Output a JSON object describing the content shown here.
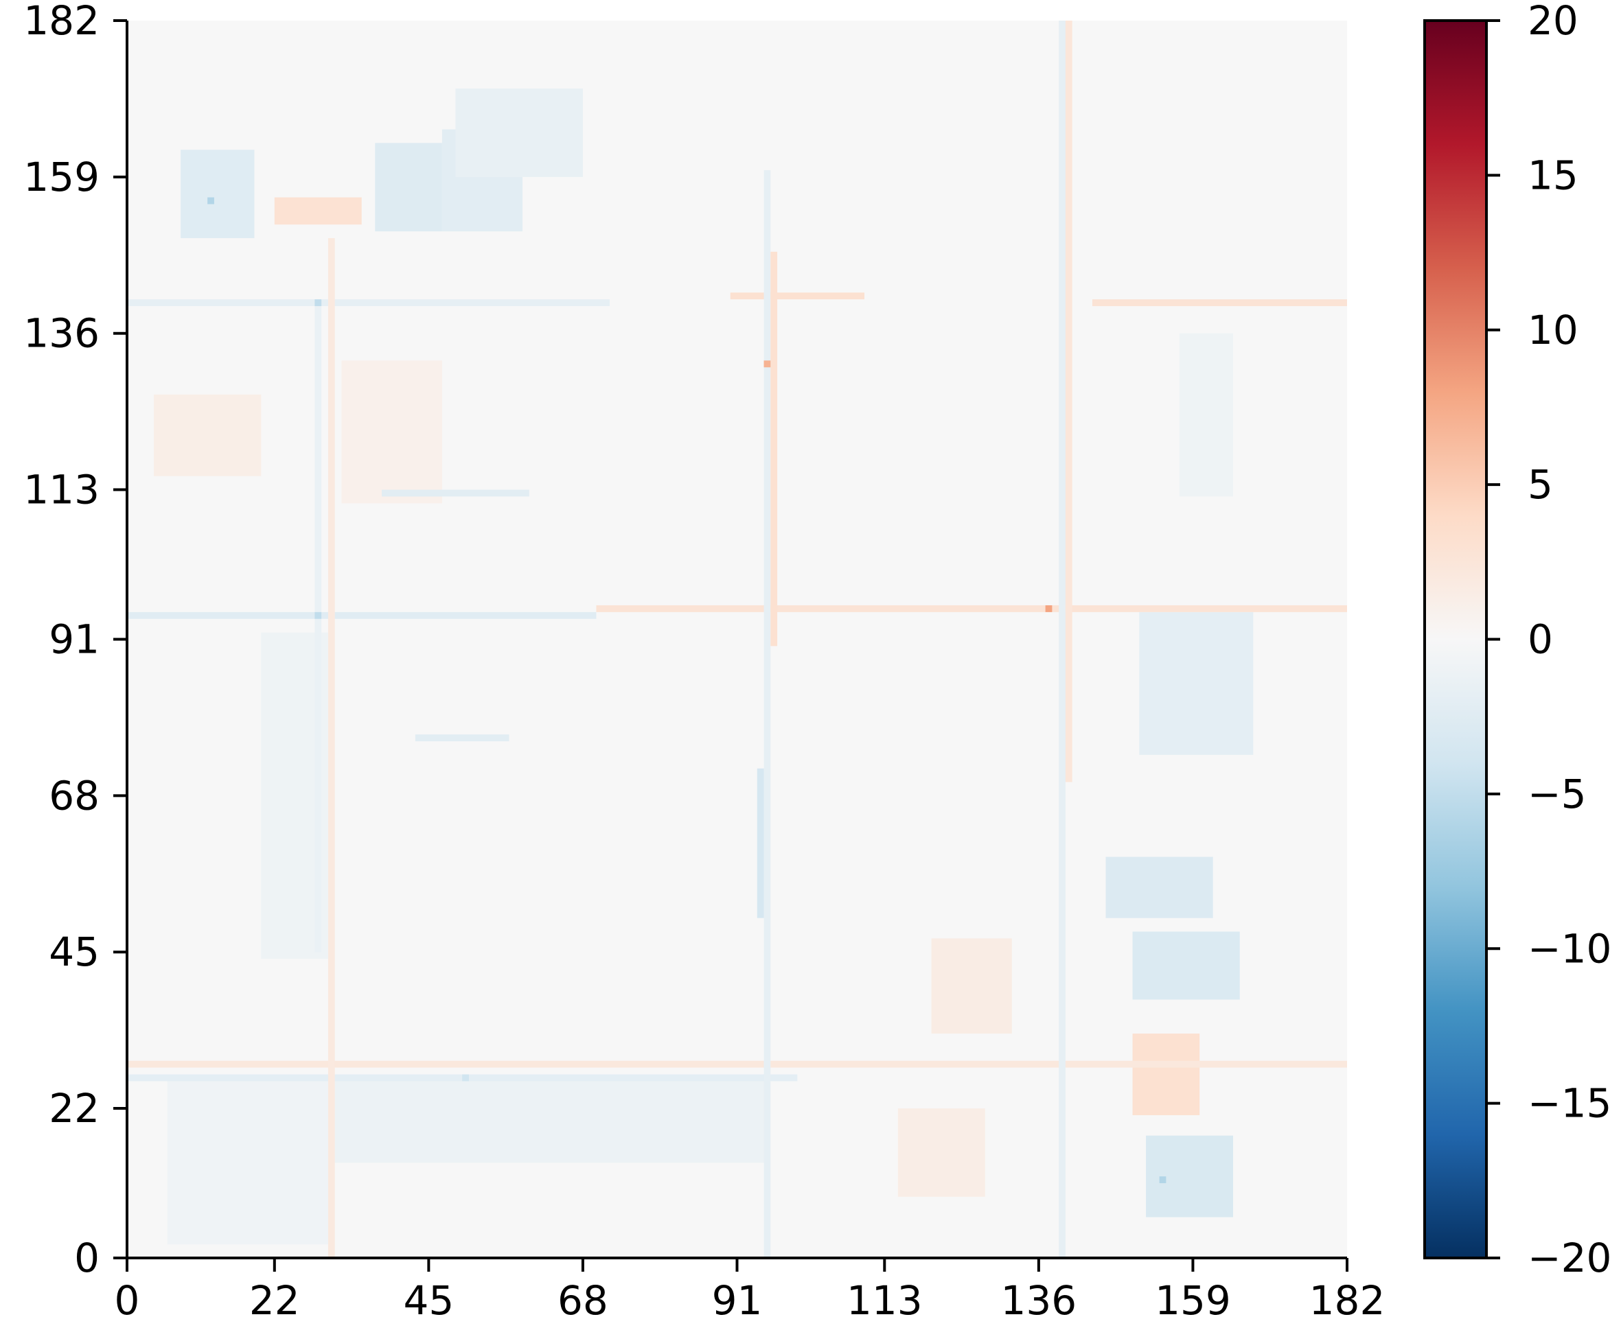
{
  "chart_data": {
    "type": "heatmap",
    "title": "",
    "xlabel": "",
    "ylabel": "",
    "grid": false,
    "n_rows": 182,
    "n_cols": 182,
    "xlim": [
      0,
      182
    ],
    "ylim": [
      0,
      182
    ],
    "x_ticks": [
      0,
      22,
      45,
      68,
      91,
      113,
      136,
      159,
      182
    ],
    "y_ticks": [
      0,
      22,
      45,
      68,
      91,
      113,
      136,
      159,
      182
    ],
    "x_tick_labels": [
      "0",
      "22",
      "45",
      "68",
      "91",
      "113",
      "136",
      "159",
      "182"
    ],
    "y_tick_labels": [
      "0",
      "22",
      "45",
      "68",
      "91",
      "113",
      "136",
      "159",
      "182"
    ],
    "background_value": 0,
    "colorbar": {
      "colormap": "RdBu_r",
      "vmin": -20,
      "vmax": 20,
      "ticks": [
        20,
        15,
        10,
        5,
        0,
        -5,
        -10,
        -15,
        -20
      ],
      "tick_labels": [
        "20",
        "15",
        "10",
        "5",
        "0",
        "−5",
        "−10",
        "−15",
        "−20"
      ],
      "colors": [
        "#053061",
        "#2166ac",
        "#4393c3",
        "#92c5de",
        "#d1e5f0",
        "#f7f7f7",
        "#fddbc7",
        "#f4a582",
        "#d6604d",
        "#b2182b",
        "#67001f"
      ]
    },
    "patterns": [
      {
        "kind": "block",
        "x": [
          8,
          19
        ],
        "y": [
          150,
          163
        ],
        "value": -2.5
      },
      {
        "kind": "block",
        "x": [
          37,
          47
        ],
        "y": [
          151,
          164
        ],
        "value": -2.6
      },
      {
        "kind": "block",
        "x": [
          47,
          59
        ],
        "y": [
          151,
          166
        ],
        "value": -2.2
      },
      {
        "kind": "block",
        "x": [
          49,
          68
        ],
        "y": [
          159,
          172
        ],
        "value": -1.6
      },
      {
        "kind": "block",
        "x": [
          22,
          35
        ],
        "y": [
          152,
          156
        ],
        "value": 3.0
      },
      {
        "kind": "block",
        "x": [
          4,
          20
        ],
        "y": [
          115,
          127
        ],
        "value": 1.3
      },
      {
        "kind": "block",
        "x": [
          32,
          47
        ],
        "y": [
          111,
          132
        ],
        "value": 1.0
      },
      {
        "kind": "block",
        "x": [
          152,
          165
        ],
        "y": [
          6,
          18
        ],
        "value": -3.2
      },
      {
        "kind": "block",
        "x": [
          150,
          166
        ],
        "y": [
          38,
          48
        ],
        "value": -3.0
      },
      {
        "kind": "block",
        "x": [
          146,
          162
        ],
        "y": [
          50,
          59
        ],
        "value": -2.8
      },
      {
        "kind": "block",
        "x": [
          151,
          168
        ],
        "y": [
          74,
          95
        ],
        "value": -2.0
      },
      {
        "kind": "block",
        "x": [
          150,
          160
        ],
        "y": [
          21,
          33
        ],
        "value": 3.2
      },
      {
        "kind": "block",
        "x": [
          115,
          128
        ],
        "y": [
          9,
          22
        ],
        "value": 1.4
      },
      {
        "kind": "block",
        "x": [
          120,
          132
        ],
        "y": [
          33,
          47
        ],
        "value": 1.6
      },
      {
        "kind": "block",
        "x": [
          157,
          165
        ],
        "y": [
          112,
          136
        ],
        "value": -1.0
      },
      {
        "kind": "block",
        "x": [
          6,
          30
        ],
        "y": [
          2,
          27
        ],
        "value": -0.8
      },
      {
        "kind": "block",
        "x": [
          30,
          95
        ],
        "y": [
          14,
          27
        ],
        "value": -1.2
      },
      {
        "kind": "block",
        "x": [
          20,
          30
        ],
        "y": [
          44,
          92
        ],
        "value": -1.0
      },
      {
        "kind": "line",
        "orient": "h",
        "pos": 94,
        "from": 0,
        "to": 70,
        "value": -2.4
      },
      {
        "kind": "line",
        "orient": "h",
        "pos": 95,
        "from": 70,
        "to": 182,
        "value": 2.8
      },
      {
        "kind": "line",
        "orient": "h",
        "pos": 28,
        "from": 0,
        "to": 182,
        "value": 2.2
      },
      {
        "kind": "line",
        "orient": "h",
        "pos": 26,
        "from": 0,
        "to": 100,
        "value": -2.0
      },
      {
        "kind": "line",
        "orient": "h",
        "pos": 140,
        "from": 0,
        "to": 72,
        "value": -1.8
      },
      {
        "kind": "line",
        "orient": "h",
        "pos": 141,
        "from": 90,
        "to": 110,
        "value": 3.2
      },
      {
        "kind": "line",
        "orient": "h",
        "pos": 140,
        "from": 144,
        "to": 182,
        "value": 2.8
      },
      {
        "kind": "line",
        "orient": "h",
        "pos": 112,
        "from": 38,
        "to": 60,
        "value": -2.2
      },
      {
        "kind": "line",
        "orient": "h",
        "pos": 76,
        "from": 43,
        "to": 57,
        "value": -2.2
      },
      {
        "kind": "line",
        "orient": "v",
        "pos": 95,
        "from": 0,
        "to": 160,
        "value": -1.8
      },
      {
        "kind": "line",
        "orient": "v",
        "pos": 96,
        "from": 90,
        "to": 148,
        "value": 3.2
      },
      {
        "kind": "line",
        "orient": "v",
        "pos": 139,
        "from": 0,
        "to": 182,
        "value": -1.8
      },
      {
        "kind": "line",
        "orient": "v",
        "pos": 140,
        "from": 70,
        "to": 182,
        "value": 2.4
      },
      {
        "kind": "line",
        "orient": "v",
        "pos": 30,
        "from": 0,
        "to": 150,
        "value": 2.0
      },
      {
        "kind": "line",
        "orient": "v",
        "pos": 28,
        "from": 45,
        "to": 140,
        "value": -1.4
      },
      {
        "kind": "line",
        "orient": "v",
        "pos": 94,
        "from": 50,
        "to": 72,
        "value": -3.5
      },
      {
        "kind": "point",
        "x": 137,
        "y": 95,
        "value": 8.0
      },
      {
        "kind": "point",
        "x": 95,
        "y": 131,
        "value": 7.0
      },
      {
        "kind": "point",
        "x": 12,
        "y": 155,
        "value": -6.0
      },
      {
        "kind": "point",
        "x": 154,
        "y": 11,
        "value": -6.0
      },
      {
        "kind": "point",
        "x": 28,
        "y": 94,
        "value": -5.0
      },
      {
        "kind": "point",
        "x": 28,
        "y": 140,
        "value": -5.0
      },
      {
        "kind": "point",
        "x": 50,
        "y": 26,
        "value": -4.0
      }
    ]
  }
}
